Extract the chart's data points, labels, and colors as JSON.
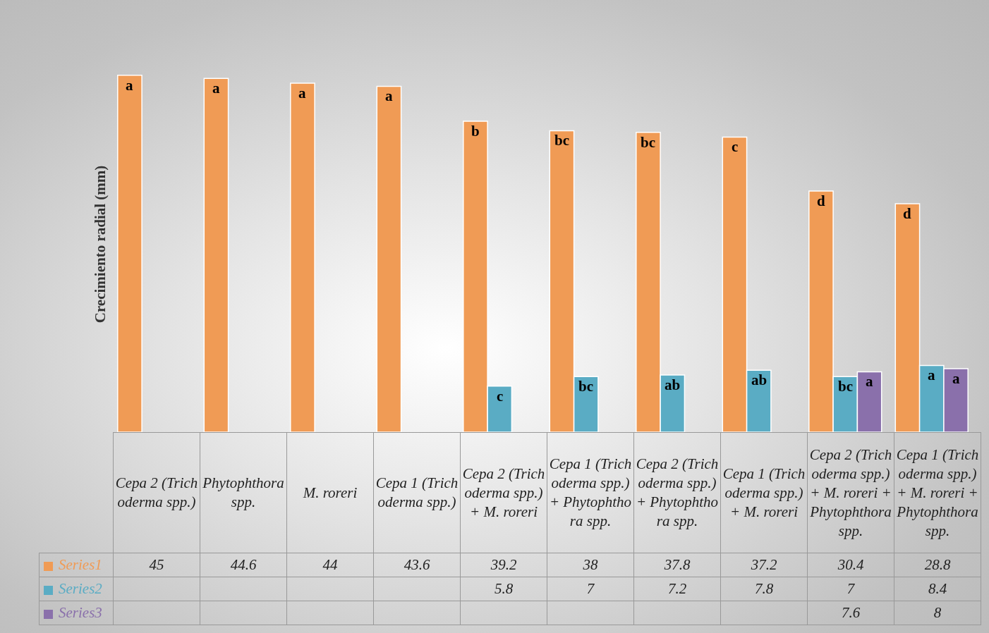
{
  "chart_data": {
    "type": "bar",
    "ylabel": "Crecimiento radial (mm)",
    "categories": [
      "Cepa 2 (Trichoderma spp.)",
      "Phytophthora spp.",
      "M. roreri",
      "Cepa 1 (Trichoderma spp.)",
      "Cepa 2 (Trichoderma spp.) + M. roreri",
      "Cepa 1 (Trichoderma spp.) + Phytophthora spp.",
      "Cepa 2 (Trichoderma spp.) + Phytophthora spp.",
      "Cepa 1 (Trichoderma spp.) + M. roreri",
      "Cepa 2 (Trichoderma spp.) + M. roreri + Phytophthora spp.",
      "Cepa 1 (Trichoderma spp.) + M. roreri + Phytophthora spp."
    ],
    "series": [
      {
        "name": "Series1",
        "color": "#f09b55",
        "values": [
          45,
          44.6,
          44,
          43.6,
          39.2,
          38,
          37.8,
          37.2,
          30.4,
          28.8
        ]
      },
      {
        "name": "Series2",
        "color": "#5aacc4",
        "values": [
          null,
          null,
          null,
          null,
          5.8,
          7,
          7.2,
          7.8,
          7,
          8.4
        ]
      },
      {
        "name": "Series3",
        "color": "#8a70ab",
        "values": [
          null,
          null,
          null,
          null,
          null,
          null,
          null,
          null,
          7.6,
          8
        ]
      }
    ],
    "data_labels": true,
    "legend": "bottom",
    "grid": false,
    "annotations": [
      "a",
      "a",
      "a",
      "a",
      "b",
      "bc",
      "bc",
      "c",
      "d",
      "d",
      "c",
      "bc",
      "ab",
      "ab",
      "bc",
      "a",
      "a",
      "a"
    ]
  }
}
